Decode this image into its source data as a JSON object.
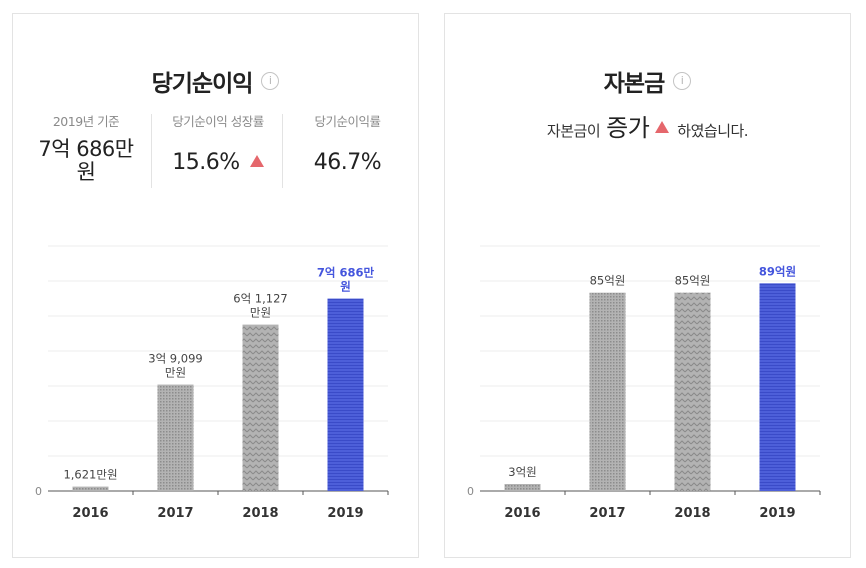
{
  "card1": {
    "title": "당기순이익",
    "info_icon": "i",
    "stats": [
      {
        "label": "2019년 기준",
        "value": "7억 686만 원"
      },
      {
        "label": "당기순이익 성장률",
        "value": "15.6%",
        "trend": "up"
      },
      {
        "label": "당기순이익률",
        "value": "46.7%"
      }
    ]
  },
  "card2": {
    "title": "자본금",
    "info_icon": "i",
    "sentence": {
      "prefix": "자본금이",
      "word": "증가",
      "suffix": "하였습니다.",
      "trend": "up"
    }
  },
  "colors": {
    "bar_gray": "#a9a9a9",
    "bar_highlight": "#4d5fd9",
    "trend_up": "#e5676c",
    "highlight_text": "#4455dd"
  },
  "chart_data": [
    {
      "type": "bar",
      "title": "당기순이익",
      "categories": [
        "2016",
        "2017",
        "2018",
        "2019"
      ],
      "values": [
        1621,
        39099,
        61127,
        70686
      ],
      "unit": "만원",
      "data_labels": [
        "1,621만원",
        "3억 9,099 만원",
        "6억 1,127 만원",
        "7억 686만 원"
      ],
      "highlight_index": 3,
      "ylim": [
        0,
        90000
      ],
      "y_tick_labels": [
        "0"
      ],
      "grid": true
    },
    {
      "type": "bar",
      "title": "자본금",
      "categories": [
        "2016",
        "2017",
        "2018",
        "2019"
      ],
      "values": [
        3,
        85,
        85,
        89
      ],
      "unit": "억원",
      "data_labels": [
        "3억원",
        "85억원",
        "85억원",
        "89억원"
      ],
      "highlight_index": 3,
      "ylim": [
        0,
        105
      ],
      "y_tick_labels": [
        "0"
      ],
      "grid": true
    }
  ]
}
